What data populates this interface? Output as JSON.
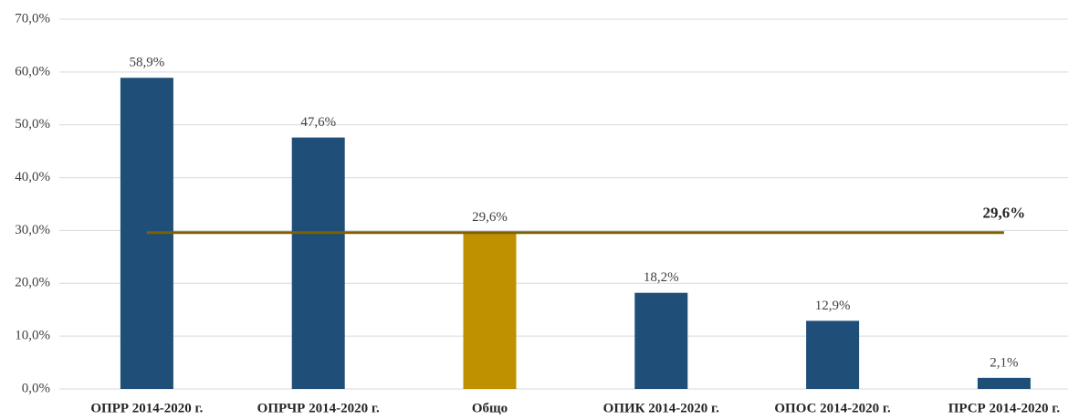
{
  "chart_data": {
    "type": "bar",
    "categories": [
      "ОПРР 2014-2020 г.",
      "ОПРЧР 2014-2020 г.",
      "Общо",
      "ОПИК 2014-2020 г.",
      "ОПОС 2014-2020 г.",
      "ПРСР 2014-2020 г."
    ],
    "values": [
      58.9,
      47.6,
      29.6,
      18.2,
      12.9,
      2.1
    ],
    "value_labels": [
      "58,9%",
      "47,6%",
      "29,6%",
      "18,2%",
      "12,9%",
      "2,1%"
    ],
    "colors": [
      "#1f4e79",
      "#1f4e79",
      "#bf9000",
      "#1f4e79",
      "#1f4e79",
      "#1f4e79"
    ],
    "reference_line": {
      "value": 29.6,
      "label": "29,6%",
      "color": "#7f6000"
    },
    "ylim": [
      0,
      70
    ],
    "yticks": [
      {
        "value": 0,
        "label": "0,0%"
      },
      {
        "value": 10,
        "label": "10,0%"
      },
      {
        "value": 20,
        "label": "20,0%"
      },
      {
        "value": 30,
        "label": "30,0%"
      },
      {
        "value": 40,
        "label": "40,0%"
      },
      {
        "value": 50,
        "label": "50,0%"
      },
      {
        "value": 60,
        "label": "60,0%"
      },
      {
        "value": 70,
        "label": "70,0%"
      }
    ],
    "grid": true
  }
}
